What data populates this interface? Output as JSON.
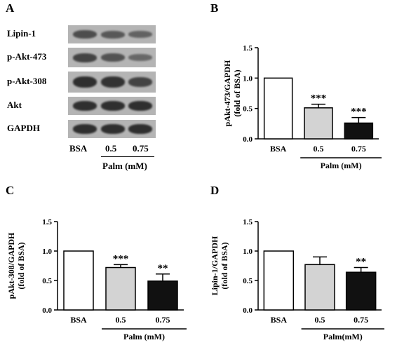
{
  "panel_a": {
    "letter": "A",
    "blots": [
      {
        "label": "Lipin-1",
        "intensity": [
          0.65,
          0.55,
          0.45
        ]
      },
      {
        "label": "p-Akt-473",
        "intensity": [
          0.75,
          0.6,
          0.4
        ]
      },
      {
        "label": "p-Akt-308",
        "intensity": [
          0.95,
          0.9,
          0.75
        ]
      },
      {
        "label": "Akt",
        "intensity": [
          0.95,
          0.95,
          0.95
        ]
      },
      {
        "label": "GAPDH",
        "intensity": [
          0.95,
          0.95,
          0.95
        ]
      }
    ],
    "conditions": [
      "BSA",
      "0.5",
      "0.75"
    ],
    "treatment_label": "Palm (mM)"
  },
  "chart_data": [
    {
      "panel": "B",
      "type": "bar",
      "categories": [
        "BSA",
        "0.5",
        "0.75"
      ],
      "values": [
        1.0,
        0.51,
        0.26
      ],
      "errors": [
        0,
        0.06,
        0.09
      ],
      "significance": [
        "",
        "***",
        "***"
      ],
      "bar_colors": [
        "#ffffff",
        "#d3d3d3",
        "#111111"
      ],
      "ylabel": [
        "pAkt-473/GAPDH",
        "(fold of BSA)"
      ],
      "xlabel": "Palm (mM)",
      "ylim": [
        0.0,
        1.5
      ],
      "yticks": [
        "0.0",
        "0.5",
        "1.0",
        "1.5"
      ]
    },
    {
      "panel": "C",
      "type": "bar",
      "categories": [
        "BSA",
        "0.5",
        "0.75"
      ],
      "values": [
        1.0,
        0.72,
        0.49
      ],
      "errors": [
        0,
        0.05,
        0.12
      ],
      "significance": [
        "",
        "***",
        "**"
      ],
      "bar_colors": [
        "#ffffff",
        "#d3d3d3",
        "#111111"
      ],
      "ylabel": [
        "pAkt-308/GAPDH",
        "(fold of BSA)"
      ],
      "xlabel": "Palm (mM)",
      "ylim": [
        0.0,
        1.5
      ],
      "yticks": [
        "0.0",
        "0.5",
        "1.0",
        "1.5"
      ]
    },
    {
      "panel": "D",
      "type": "bar",
      "categories": [
        "BSA",
        "0.5",
        "0.75"
      ],
      "values": [
        1.0,
        0.77,
        0.64
      ],
      "errors": [
        0,
        0.13,
        0.08
      ],
      "significance": [
        "",
        "",
        "**"
      ],
      "bar_colors": [
        "#ffffff",
        "#d3d3d3",
        "#111111"
      ],
      "ylabel": [
        "Lipin-1/GAPDH",
        "(fold of BSA)"
      ],
      "xlabel": "Palm(mM)",
      "ylim": [
        0.0,
        1.5
      ],
      "yticks": [
        "0.0",
        "0.5",
        "1.0",
        "1.5"
      ]
    }
  ]
}
